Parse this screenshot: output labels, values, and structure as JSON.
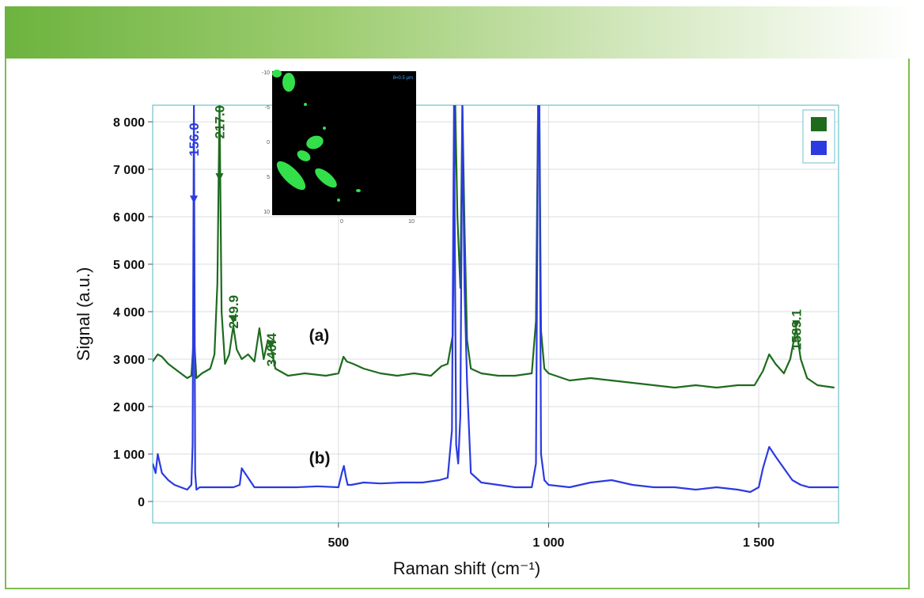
{
  "chart_data": {
    "type": "line",
    "xlabel": "Raman shift (cm⁻¹)",
    "ylabel": "Signal (a.u.)",
    "xlim": [
      58,
      1690
    ],
    "ylim": [
      -450,
      8350
    ],
    "x_ticks": [
      {
        "value": 500,
        "label": "500"
      },
      {
        "value": 1000,
        "label": "1 000"
      },
      {
        "value": 1500,
        "label": "1 500"
      }
    ],
    "y_ticks": [
      {
        "value": 0,
        "label": "0"
      },
      {
        "value": 1000,
        "label": "1 000"
      },
      {
        "value": 2000,
        "label": "2 000"
      },
      {
        "value": 3000,
        "label": "3 000"
      },
      {
        "value": 4000,
        "label": "4 000"
      },
      {
        "value": 5000,
        "label": "5 000"
      },
      {
        "value": 6000,
        "label": "6 000"
      },
      {
        "value": 7000,
        "label": "7 000"
      },
      {
        "value": 8000,
        "label": "8 000"
      }
    ],
    "grid": true,
    "legend_position": "top-right",
    "series": [
      {
        "label": "(a)",
        "color": "#1e6b1e",
        "label_pos": [
          170,
          3520
        ],
        "x": [
          58,
          70,
          80,
          95,
          110,
          125,
          140,
          150,
          156,
          162,
          175,
          195,
          205,
          212,
          217,
          222,
          230,
          240,
          249.9,
          258,
          270,
          285,
          300,
          312,
          322,
          332,
          340.4,
          350,
          380,
          420,
          470,
          500,
          512,
          520,
          535,
          560,
          600,
          640,
          680,
          720,
          745,
          760,
          772,
          778,
          783,
          790,
          795,
          800,
          806,
          815,
          840,
          880,
          920,
          960,
          970,
          975,
          978,
          982,
          990,
          1000,
          1050,
          1100,
          1150,
          1200,
          1250,
          1300,
          1350,
          1400,
          1450,
          1490,
          1510,
          1525,
          1540,
          1560,
          1575,
          1589.1,
          1600,
          1615,
          1640,
          1680
        ],
        "y": [
          2950,
          3100,
          3050,
          2900,
          2800,
          2700,
          2600,
          2650,
          3500,
          2600,
          2700,
          2800,
          3100,
          4600,
          8350,
          4000,
          2900,
          3100,
          3700,
          3200,
          3000,
          3100,
          2950,
          3650,
          3000,
          3400,
          3200,
          2800,
          2650,
          2700,
          2650,
          2700,
          3050,
          2950,
          2900,
          2800,
          2700,
          2650,
          2700,
          2650,
          2850,
          2900,
          3500,
          8350,
          6000,
          4500,
          8350,
          5800,
          3400,
          2800,
          2700,
          2650,
          2650,
          2700,
          3800,
          8350,
          8350,
          3600,
          2800,
          2700,
          2550,
          2600,
          2550,
          2500,
          2450,
          2400,
          2450,
          2400,
          2450,
          2450,
          2750,
          3100,
          2900,
          2700,
          3000,
          3650,
          3000,
          2600,
          2450,
          2400
        ]
      },
      {
        "label": "(b)",
        "color": "#2b3be0",
        "label_pos": [
          170,
          930
        ],
        "x": [
          58,
          65,
          70,
          80,
          95,
          110,
          125,
          140,
          150,
          153,
          156,
          159,
          162,
          170,
          200,
          250,
          265,
          270,
          300,
          350,
          400,
          450,
          500,
          508,
          513,
          518,
          522,
          530,
          560,
          600,
          650,
          700,
          740,
          760,
          770,
          775,
          780,
          785,
          790,
          795,
          800,
          806,
          815,
          840,
          880,
          920,
          960,
          970,
          975,
          978,
          982,
          990,
          1000,
          1050,
          1100,
          1150,
          1200,
          1250,
          1300,
          1350,
          1400,
          1450,
          1480,
          1500,
          1510,
          1525,
          1540,
          1560,
          1580,
          1600,
          1620,
          1650,
          1690
        ],
        "y": [
          800,
          600,
          1000,
          600,
          450,
          350,
          300,
          250,
          350,
          1200,
          8350,
          600,
          250,
          300,
          300,
          300,
          350,
          700,
          300,
          300,
          300,
          320,
          300,
          600,
          750,
          500,
          350,
          350,
          400,
          380,
          400,
          400,
          450,
          500,
          1500,
          8350,
          1200,
          800,
          1800,
          8350,
          4500,
          2500,
          600,
          400,
          350,
          300,
          300,
          800,
          8350,
          8350,
          1000,
          450,
          350,
          300,
          400,
          450,
          350,
          300,
          300,
          250,
          300,
          250,
          200,
          300,
          700,
          1150,
          950,
          700,
          450,
          350,
          300,
          300,
          300
        ]
      }
    ],
    "annotations": [
      {
        "text": "156.0",
        "x": 156.0,
        "color": "#2b3be0",
        "from_y": 7980,
        "to_y": 6280
      },
      {
        "text": "217.0",
        "x": 217.0,
        "color": "#1e6b1e",
        "from_y": 8350,
        "to_y": 6750
      },
      {
        "text": "249.9",
        "x": 249.9,
        "color": "#1e6b1e",
        "from_y": 4350,
        "to_y": 3750
      },
      {
        "text": "340.4",
        "x": 340.4,
        "color": "#1e6b1e",
        "from_y": 3550,
        "to_y": 3230
      },
      {
        "text": "1589.1",
        "x": 1589.1,
        "color": "#1e6b1e",
        "from_y": 4050,
        "to_y": 3650
      }
    ],
    "legend": [
      {
        "color": "#1e6b1e"
      },
      {
        "color": "#2b3be0"
      }
    ]
  },
  "inset": {
    "background": "#000000",
    "blob_color": "#33e04a",
    "scale_text": "8=0.5 µm",
    "y_ticks": [
      "-10",
      "-5",
      "0",
      "5",
      "10"
    ],
    "x_ticks": [
      "0",
      "10"
    ]
  }
}
